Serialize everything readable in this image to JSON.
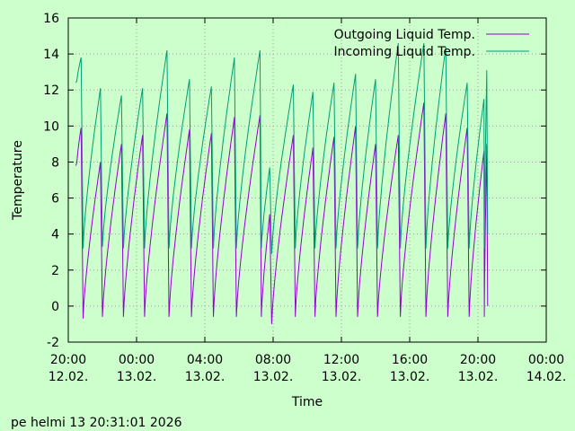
{
  "chart_data": {
    "type": "line",
    "title": "",
    "xlabel": "Time",
    "ylabel": "Temperature",
    "ylim": [
      -2,
      16
    ],
    "xlim": [
      "2026-02-12T20:00",
      "2026-02-14T00:00"
    ],
    "y_ticks": [
      -2,
      0,
      2,
      4,
      6,
      8,
      10,
      12,
      14,
      16
    ],
    "x_ticks": [
      {
        "time": "2026-02-12T20:00",
        "line1": "20:00",
        "line2": "12.02."
      },
      {
        "time": "2026-02-13T00:00",
        "line1": "00:00",
        "line2": "13.02."
      },
      {
        "time": "2026-02-13T04:00",
        "line1": "04:00",
        "line2": "13.02."
      },
      {
        "time": "2026-02-13T08:00",
        "line1": "08:00",
        "line2": "13.02."
      },
      {
        "time": "2026-02-13T12:00",
        "line1": "12:00",
        "line2": "13.02."
      },
      {
        "time": "2026-02-13T16:00",
        "line1": "16:00",
        "line2": "13.02."
      },
      {
        "time": "2026-02-13T20:00",
        "line1": "20:00",
        "line2": "13.02."
      },
      {
        "time": "2026-02-14T00:00",
        "line1": "00:00",
        "line2": "14.02."
      }
    ],
    "grid": true,
    "legend_position": "top-right",
    "series": [
      {
        "name": "Outgoing Liquid Temp.",
        "color": "#9400d3",
        "cycles": [
          {
            "start": "2026-02-12T20:27",
            "end": "2026-02-12T20:45",
            "base": 7.8,
            "peak": 9.9
          },
          {
            "start": "2026-02-12T20:45",
            "end": "2026-02-12T21:53",
            "base": -0.7,
            "peak": 8.0
          },
          {
            "start": "2026-02-12T21:53",
            "end": "2026-02-12T23:07",
            "base": -0.6,
            "peak": 9.0
          },
          {
            "start": "2026-02-12T23:07",
            "end": "2026-02-13T00:21",
            "base": -0.6,
            "peak": 9.5
          },
          {
            "start": "2026-02-13T00:21",
            "end": "2026-02-13T01:47",
            "base": -0.6,
            "peak": 10.7
          },
          {
            "start": "2026-02-13T01:47",
            "end": "2026-02-13T03:06",
            "base": -0.6,
            "peak": 9.8
          },
          {
            "start": "2026-02-13T03:06",
            "end": "2026-02-13T04:23",
            "base": -0.6,
            "peak": 9.6
          },
          {
            "start": "2026-02-13T04:23",
            "end": "2026-02-13T05:44",
            "base": -0.6,
            "peak": 10.5
          },
          {
            "start": "2026-02-13T05:44",
            "end": "2026-02-13T07:14",
            "base": -0.6,
            "peak": 10.6
          },
          {
            "start": "2026-02-13T07:14",
            "end": "2026-02-13T07:48",
            "base": -0.6,
            "peak": 5.1
          },
          {
            "start": "2026-02-13T07:48",
            "end": "2026-02-13T09:11",
            "base": -1.0,
            "peak": 9.5
          },
          {
            "start": "2026-02-13T09:11",
            "end": "2026-02-13T10:20",
            "base": -0.6,
            "peak": 8.8
          },
          {
            "start": "2026-02-13T10:20",
            "end": "2026-02-13T11:34",
            "base": -0.6,
            "peak": 9.4
          },
          {
            "start": "2026-02-13T11:34",
            "end": "2026-02-13T12:50",
            "base": -0.6,
            "peak": 10.0
          },
          {
            "start": "2026-02-13T12:50",
            "end": "2026-02-13T14:00",
            "base": -0.6,
            "peak": 9.0
          },
          {
            "start": "2026-02-13T14:00",
            "end": "2026-02-13T15:20",
            "base": -0.6,
            "peak": 9.5
          },
          {
            "start": "2026-02-13T15:20",
            "end": "2026-02-13T16:50",
            "base": -0.6,
            "peak": 11.3
          },
          {
            "start": "2026-02-13T16:50",
            "end": "2026-02-13T18:07",
            "base": -0.6,
            "peak": 10.7
          },
          {
            "start": "2026-02-13T18:07",
            "end": "2026-02-13T19:22",
            "base": -0.6,
            "peak": 9.9
          },
          {
            "start": "2026-02-13T19:22",
            "end": "2026-02-13T20:21",
            "base": -0.6,
            "peak": 8.6
          },
          {
            "start": "2026-02-13T20:21",
            "end": "2026-02-13T20:31",
            "base": -0.6,
            "peak": 9.0,
            "tail": 0.0
          }
        ]
      },
      {
        "name": "Incoming Liquid Temp.",
        "color": "#009e73",
        "cycles": [
          {
            "start": "2026-02-12T20:27",
            "end": "2026-02-12T20:45",
            "base": 12.4,
            "peak": 13.8
          },
          {
            "start": "2026-02-12T20:45",
            "end": "2026-02-12T21:53",
            "base": 3.2,
            "peak": 12.1
          },
          {
            "start": "2026-02-12T21:53",
            "end": "2026-02-12T23:07",
            "base": 3.3,
            "peak": 11.7
          },
          {
            "start": "2026-02-12T23:07",
            "end": "2026-02-13T00:21",
            "base": 3.2,
            "peak": 12.1
          },
          {
            "start": "2026-02-13T00:21",
            "end": "2026-02-13T01:47",
            "base": 3.2,
            "peak": 14.2
          },
          {
            "start": "2026-02-13T01:47",
            "end": "2026-02-13T03:06",
            "base": 3.2,
            "peak": 12.6
          },
          {
            "start": "2026-02-13T03:06",
            "end": "2026-02-13T04:23",
            "base": 3.2,
            "peak": 12.2
          },
          {
            "start": "2026-02-13T04:23",
            "end": "2026-02-13T05:44",
            "base": 3.2,
            "peak": 13.8
          },
          {
            "start": "2026-02-13T05:44",
            "end": "2026-02-13T07:14",
            "base": 3.2,
            "peak": 14.2
          },
          {
            "start": "2026-02-13T07:14",
            "end": "2026-02-13T07:48",
            "base": 3.2,
            "peak": 7.7
          },
          {
            "start": "2026-02-13T07:48",
            "end": "2026-02-13T09:11",
            "base": 2.9,
            "peak": 12.3
          },
          {
            "start": "2026-02-13T09:11",
            "end": "2026-02-13T10:20",
            "base": 3.2,
            "peak": 11.9
          },
          {
            "start": "2026-02-13T10:20",
            "end": "2026-02-13T11:34",
            "base": 3.2,
            "peak": 12.4
          },
          {
            "start": "2026-02-13T11:34",
            "end": "2026-02-13T12:50",
            "base": 3.2,
            "peak": 12.9
          },
          {
            "start": "2026-02-13T12:50",
            "end": "2026-02-13T14:00",
            "base": 3.2,
            "peak": 12.6
          },
          {
            "start": "2026-02-13T14:00",
            "end": "2026-02-13T15:20",
            "base": 3.2,
            "peak": 14.6
          },
          {
            "start": "2026-02-13T15:20",
            "end": "2026-02-13T16:50",
            "base": 3.2,
            "peak": 14.6
          },
          {
            "start": "2026-02-13T16:50",
            "end": "2026-02-13T18:07",
            "base": 3.2,
            "peak": 14.4
          },
          {
            "start": "2026-02-13T18:07",
            "end": "2026-02-13T19:22",
            "base": 3.2,
            "peak": 12.4
          },
          {
            "start": "2026-02-13T19:22",
            "end": "2026-02-13T20:21",
            "base": 3.2,
            "peak": 11.5
          },
          {
            "start": "2026-02-13T20:21",
            "end": "2026-02-13T20:31",
            "base": 3.2,
            "peak": 13.1,
            "tail": 4.0
          }
        ]
      }
    ]
  },
  "colors": {
    "background": "#ccffcc",
    "grid": "#a0a0a0",
    "axis": "#000000"
  },
  "footer": {
    "timestamp": "pe helmi 13 20:31:01 2026"
  }
}
